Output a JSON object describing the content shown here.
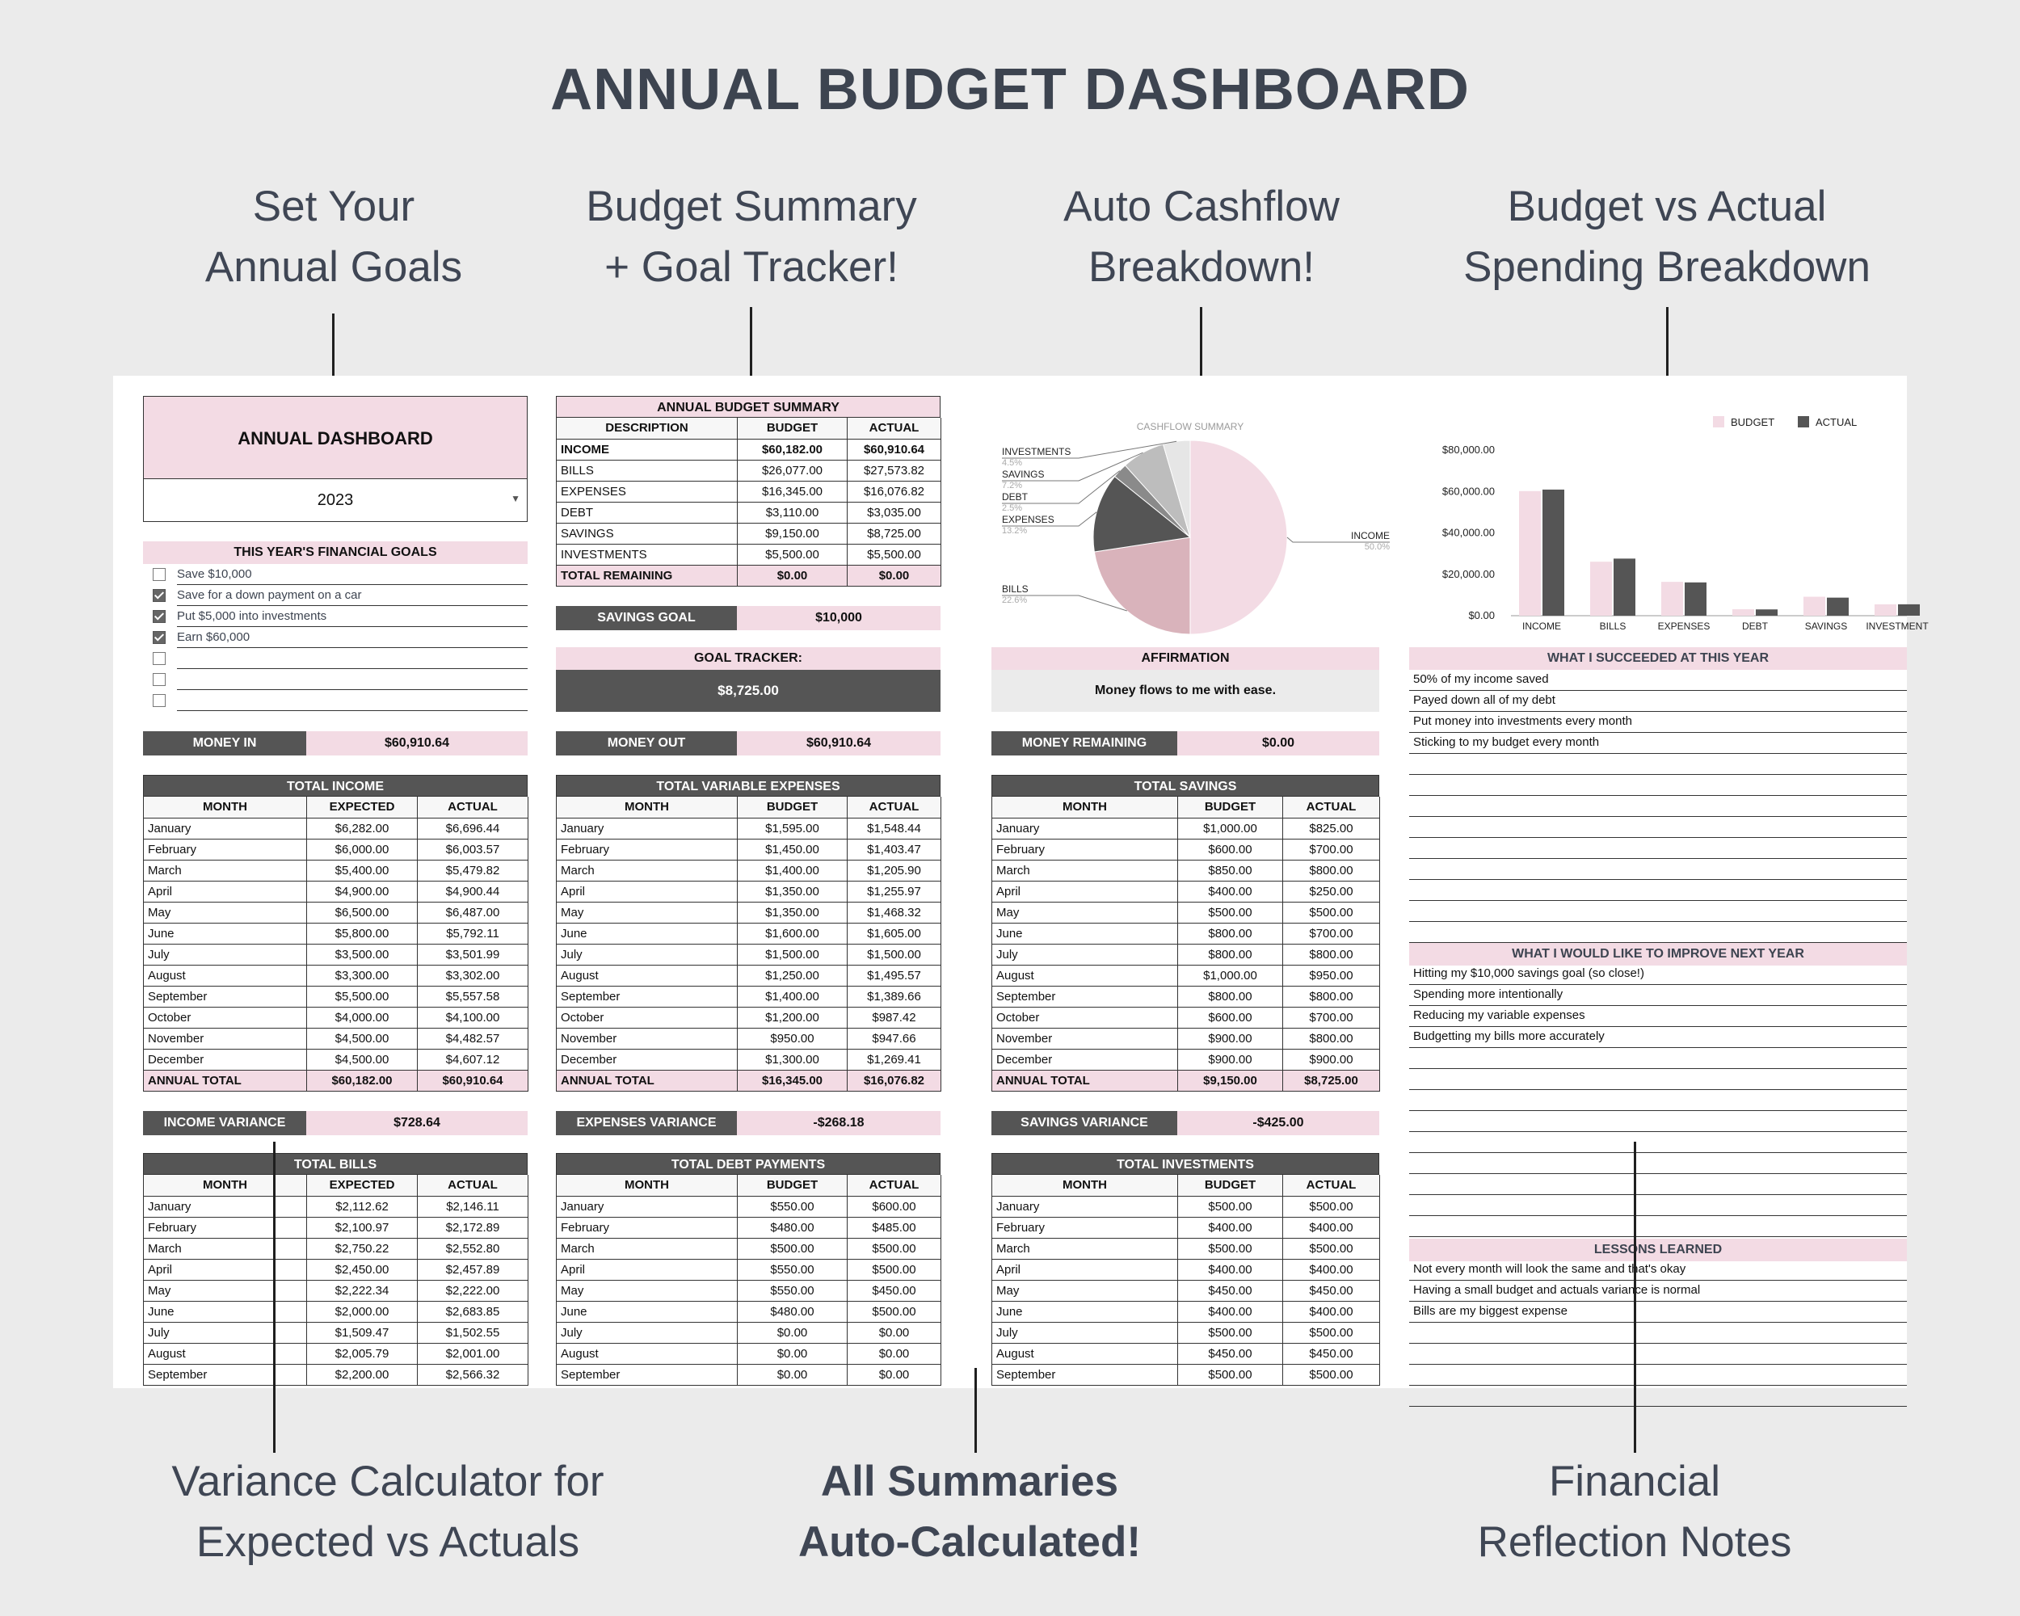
{
  "page": {
    "title": "ANNUAL BUDGET DASHBOARD",
    "callouts": {
      "goals": [
        "Set Your",
        "Annual Goals"
      ],
      "summary": [
        "Budget Summary",
        "+ Goal Tracker!"
      ],
      "cashflow": [
        "Auto Cashflow",
        "Breakdown!"
      ],
      "bva": [
        "Budget vs Actual",
        "Spending Breakdown"
      ],
      "variance": [
        "Variance Calculator for",
        "Expected vs Actuals"
      ],
      "auto": [
        "All Summaries",
        "Auto-Calculated!"
      ],
      "notes": [
        "Financial",
        "Reflection Notes"
      ]
    }
  },
  "dashboard": {
    "title": "ANNUAL DASHBOARD",
    "year": "2023",
    "goals_title": "THIS YEAR'S FINANCIAL GOALS",
    "goals": [
      {
        "text": "Save $10,000",
        "checked": false
      },
      {
        "text": "Save for a down payment on a car",
        "checked": true
      },
      {
        "text": "Put $5,000 into investments",
        "checked": true
      },
      {
        "text": "Earn $60,000",
        "checked": true
      },
      {
        "text": "",
        "checked": false
      },
      {
        "text": "",
        "checked": false
      },
      {
        "text": "",
        "checked": false
      }
    ],
    "money_in_label": "MONEY IN",
    "money_in": "$60,910.64",
    "money_out_label": "MONEY OUT",
    "money_out": "$60,910.64",
    "money_remaining_label": "MONEY REMAINING",
    "money_remaining": "$0.00"
  },
  "summary": {
    "title": "ANNUAL BUDGET SUMMARY",
    "headers": [
      "DESCRIPTION",
      "BUDGET",
      "ACTUAL"
    ],
    "rows": [
      [
        "INCOME",
        "$60,182.00",
        "$60,910.64"
      ],
      [
        "BILLS",
        "$26,077.00",
        "$27,573.82"
      ],
      [
        "EXPENSES",
        "$16,345.00",
        "$16,076.82"
      ],
      [
        "DEBT",
        "$3,110.00",
        "$3,035.00"
      ],
      [
        "SAVINGS",
        "$9,150.00",
        "$8,725.00"
      ],
      [
        "INVESTMENTS",
        "$5,500.00",
        "$5,500.00"
      ]
    ],
    "total": [
      "TOTAL REMAINING",
      "$0.00",
      "$0.00"
    ],
    "savings_goal_label": "SAVINGS GOAL",
    "savings_goal": "$10,000",
    "goal_tracker_label": "GOAL TRACKER:",
    "goal_tracker_value": "$8,725.00"
  },
  "affirmation": {
    "title": "AFFIRMATION",
    "text": "Money flows to me with ease."
  },
  "pie": {
    "title": "CASHFLOW SUMMARY",
    "slices": [
      {
        "label": "INCOME",
        "pct": "50.0%",
        "value": 50.0,
        "color": "#f3dbe4"
      },
      {
        "label": "BILLS",
        "pct": "22.6%",
        "value": 22.6,
        "color": "#d9b3bb"
      },
      {
        "label": "EXPENSES",
        "pct": "13.2%",
        "value": 13.2,
        "color": "#555555"
      },
      {
        "label": "DEBT",
        "pct": "2.5%",
        "value": 2.5,
        "color": "#8a8a8a"
      },
      {
        "label": "SAVINGS",
        "pct": "7.2%",
        "value": 7.2,
        "color": "#bdbdbd"
      },
      {
        "label": "INVESTMENTS",
        "pct": "4.5%",
        "value": 4.5,
        "color": "#e6e6e6"
      }
    ]
  },
  "chart_data": {
    "type": "bar",
    "categories": [
      "INCOME",
      "BILLS",
      "EXPENSES",
      "DEBT",
      "SAVINGS",
      "INVESTMENT"
    ],
    "series": [
      {
        "name": "BUDGET",
        "color": "#f3dbe4",
        "values": [
          60182,
          26077,
          16345,
          3110,
          9150,
          5500
        ]
      },
      {
        "name": "ACTUAL",
        "color": "#555555",
        "values": [
          60910.64,
          27573.82,
          16076.82,
          3035,
          8725,
          5500
        ]
      }
    ],
    "y_ticks": [
      "$0.00",
      "$20,000.00",
      "$40,000.00",
      "$60,000.00",
      "$80,000.00"
    ],
    "ylim": [
      0,
      80000
    ],
    "legend": "top"
  },
  "income": {
    "title": "TOTAL INCOME",
    "headers": [
      "MONTH",
      "EXPECTED",
      "ACTUAL"
    ],
    "rows": [
      [
        "January",
        "$6,282.00",
        "$6,696.44"
      ],
      [
        "February",
        "$6,000.00",
        "$6,003.57"
      ],
      [
        "March",
        "$5,400.00",
        "$5,479.82"
      ],
      [
        "April",
        "$4,900.00",
        "$4,900.44"
      ],
      [
        "May",
        "$6,500.00",
        "$6,487.00"
      ],
      [
        "June",
        "$5,800.00",
        "$5,792.11"
      ],
      [
        "July",
        "$3,500.00",
        "$3,501.99"
      ],
      [
        "August",
        "$3,300.00",
        "$3,302.00"
      ],
      [
        "September",
        "$5,500.00",
        "$5,557.58"
      ],
      [
        "October",
        "$4,000.00",
        "$4,100.00"
      ],
      [
        "November",
        "$4,500.00",
        "$4,482.57"
      ],
      [
        "December",
        "$4,500.00",
        "$4,607.12"
      ]
    ],
    "total": [
      "ANNUAL TOTAL",
      "$60,182.00",
      "$60,910.64"
    ],
    "variance_label": "INCOME VARIANCE",
    "variance": "$728.64"
  },
  "expenses": {
    "title": "TOTAL VARIABLE EXPENSES",
    "headers": [
      "MONTH",
      "BUDGET",
      "ACTUAL"
    ],
    "rows": [
      [
        "January",
        "$1,595.00",
        "$1,548.44"
      ],
      [
        "February",
        "$1,450.00",
        "$1,403.47"
      ],
      [
        "March",
        "$1,400.00",
        "$1,205.90"
      ],
      [
        "April",
        "$1,350.00",
        "$1,255.97"
      ],
      [
        "May",
        "$1,350.00",
        "$1,468.32"
      ],
      [
        "June",
        "$1,600.00",
        "$1,605.00"
      ],
      [
        "July",
        "$1,500.00",
        "$1,500.00"
      ],
      [
        "August",
        "$1,250.00",
        "$1,495.57"
      ],
      [
        "September",
        "$1,400.00",
        "$1,389.66"
      ],
      [
        "October",
        "$1,200.00",
        "$987.42"
      ],
      [
        "November",
        "$950.00",
        "$947.66"
      ],
      [
        "December",
        "$1,300.00",
        "$1,269.41"
      ]
    ],
    "total": [
      "ANNUAL TOTAL",
      "$16,345.00",
      "$16,076.82"
    ],
    "variance_label": "EXPENSES VARIANCE",
    "variance": "-$268.18"
  },
  "savings": {
    "title": "TOTAL SAVINGS",
    "headers": [
      "MONTH",
      "BUDGET",
      "ACTUAL"
    ],
    "rows": [
      [
        "January",
        "$1,000.00",
        "$825.00"
      ],
      [
        "February",
        "$600.00",
        "$700.00"
      ],
      [
        "March",
        "$850.00",
        "$800.00"
      ],
      [
        "April",
        "$400.00",
        "$250.00"
      ],
      [
        "May",
        "$500.00",
        "$500.00"
      ],
      [
        "June",
        "$800.00",
        "$700.00"
      ],
      [
        "July",
        "$800.00",
        "$800.00"
      ],
      [
        "August",
        "$1,000.00",
        "$950.00"
      ],
      [
        "September",
        "$800.00",
        "$800.00"
      ],
      [
        "October",
        "$600.00",
        "$700.00"
      ],
      [
        "November",
        "$900.00",
        "$800.00"
      ],
      [
        "December",
        "$900.00",
        "$900.00"
      ]
    ],
    "total": [
      "ANNUAL TOTAL",
      "$9,150.00",
      "$8,725.00"
    ],
    "variance_label": "SAVINGS VARIANCE",
    "variance": "-$425.00"
  },
  "bills": {
    "title": "TOTAL BILLS",
    "headers": [
      "MONTH",
      "EXPECTED",
      "ACTUAL"
    ],
    "rows": [
      [
        "January",
        "$2,112.62",
        "$2,146.11"
      ],
      [
        "February",
        "$2,100.97",
        "$2,172.89"
      ],
      [
        "March",
        "$2,750.22",
        "$2,552.80"
      ],
      [
        "April",
        "$2,450.00",
        "$2,457.89"
      ],
      [
        "May",
        "$2,222.34",
        "$2,222.00"
      ],
      [
        "June",
        "$2,000.00",
        "$2,683.85"
      ],
      [
        "July",
        "$1,509.47",
        "$1,502.55"
      ],
      [
        "August",
        "$2,005.79",
        "$2,001.00"
      ],
      [
        "September",
        "$2,200.00",
        "$2,566.32"
      ]
    ]
  },
  "debt": {
    "title": "TOTAL DEBT PAYMENTS",
    "headers": [
      "MONTH",
      "BUDGET",
      "ACTUAL"
    ],
    "rows": [
      [
        "January",
        "$550.00",
        "$600.00"
      ],
      [
        "February",
        "$480.00",
        "$485.00"
      ],
      [
        "March",
        "$500.00",
        "$500.00"
      ],
      [
        "April",
        "$550.00",
        "$500.00"
      ],
      [
        "May",
        "$550.00",
        "$450.00"
      ],
      [
        "June",
        "$480.00",
        "$500.00"
      ],
      [
        "July",
        "$0.00",
        "$0.00"
      ],
      [
        "August",
        "$0.00",
        "$0.00"
      ],
      [
        "September",
        "$0.00",
        "$0.00"
      ]
    ]
  },
  "investments": {
    "title": "TOTAL INVESTMENTS",
    "headers": [
      "MONTH",
      "BUDGET",
      "ACTUAL"
    ],
    "rows": [
      [
        "January",
        "$500.00",
        "$500.00"
      ],
      [
        "February",
        "$400.00",
        "$400.00"
      ],
      [
        "March",
        "$500.00",
        "$500.00"
      ],
      [
        "April",
        "$400.00",
        "$400.00"
      ],
      [
        "May",
        "$450.00",
        "$450.00"
      ],
      [
        "June",
        "$400.00",
        "$400.00"
      ],
      [
        "July",
        "$500.00",
        "$500.00"
      ],
      [
        "August",
        "$450.00",
        "$450.00"
      ],
      [
        "September",
        "$500.00",
        "$500.00"
      ]
    ]
  },
  "notes": {
    "succeeded_title": "WHAT I SUCCEEDED AT THIS YEAR",
    "succeeded": [
      "50% of my income saved",
      "Payed down all of my debt",
      "Put money into investments every month",
      "Sticking to my budget every month",
      "",
      "",
      "",
      "",
      "",
      "",
      "",
      "",
      ""
    ],
    "improve_title": "WHAT I WOULD LIKE TO IMPROVE NEXT YEAR",
    "improve": [
      "Hitting my $10,000 savings goal (so close!)",
      "Spending more intentionally",
      "Reducing my variable expenses",
      "Budgetting my bills more accurately",
      "",
      "",
      "",
      "",
      "",
      "",
      "",
      "",
      ""
    ],
    "lessons_title": "LESSONS LEARNED",
    "lessons": [
      "Not every month will look the same and that's okay",
      "Having a small budget and actuals variance is normal",
      "Bills are my biggest expense",
      "",
      "",
      "",
      ""
    ]
  }
}
